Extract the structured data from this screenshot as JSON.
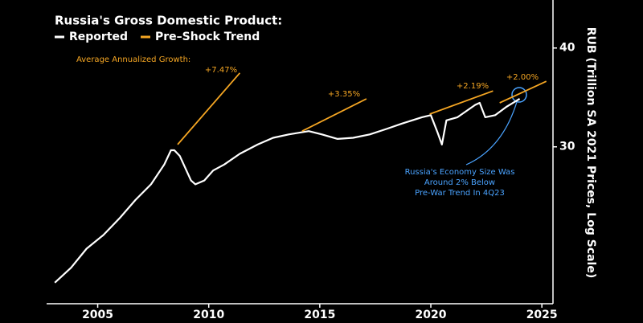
{
  "chart_data": {
    "type": "line",
    "title": "Russia's Gross Domestic Product:",
    "y_axis_label": "RUB (Trillion SA 2021 Prices, Log Scale)",
    "log_scale": true,
    "xlim": [
      2002.7,
      2025.5
    ],
    "xticks": [
      2005,
      2010,
      2015,
      2020,
      2025
    ],
    "ylim": [
      19,
      46
    ],
    "yticks": [
      30,
      40
    ],
    "series": [
      {
        "name": "Reported",
        "color": "#ffffff",
        "x": [
          2003.07,
          2003.8,
          2004.5,
          2005.25,
          2006.0,
          2006.7,
          2007.4,
          2008.0,
          2008.3,
          2008.45,
          2008.7,
          2009.2,
          2009.4,
          2009.8,
          2010.2,
          2010.7,
          2011.4,
          2012.2,
          2012.9,
          2013.6,
          2014.2,
          2014.5,
          2015.1,
          2015.8,
          2016.5,
          2017.25,
          2018.0,
          2018.7,
          2019.6,
          2020.0,
          2020.3,
          2020.5,
          2020.7,
          2021.2,
          2022.0,
          2022.2,
          2022.45,
          2022.9,
          2023.4,
          2024.0
        ],
        "values": [
          20.2,
          21.1,
          22.3,
          23.2,
          24.4,
          25.7,
          26.9,
          28.5,
          29.7,
          29.7,
          29.2,
          27.2,
          26.9,
          27.2,
          28.0,
          28.5,
          29.4,
          30.2,
          30.8,
          31.1,
          31.3,
          31.4,
          31.1,
          30.7,
          30.8,
          31.1,
          31.6,
          32.1,
          32.7,
          32.9,
          31.3,
          30.2,
          32.4,
          32.7,
          33.9,
          34.1,
          32.7,
          32.9,
          33.7,
          34.5
        ]
      },
      {
        "name": "Pre–Shock Trend",
        "color": "#f5a623",
        "x": [
          2008.6,
          2011.4,
          null,
          2014.2,
          2017.1,
          null,
          2019.95,
          2022.8,
          null,
          2023.1,
          2025.2
        ],
        "values": [
          30.2,
          37.2,
          null,
          31.4,
          34.5,
          null,
          33.0,
          35.3,
          null,
          34.1,
          36.3
        ]
      }
    ],
    "growth_heading": "Average Annualized Growth:",
    "growth_labels": [
      "+7.47%",
      "+3.35%",
      "+2.19%",
      "+2.00%"
    ],
    "callout": [
      "Russia's Economy Size Was",
      "Around 2% Below",
      "Pre-War Trend In 4Q23"
    ]
  }
}
